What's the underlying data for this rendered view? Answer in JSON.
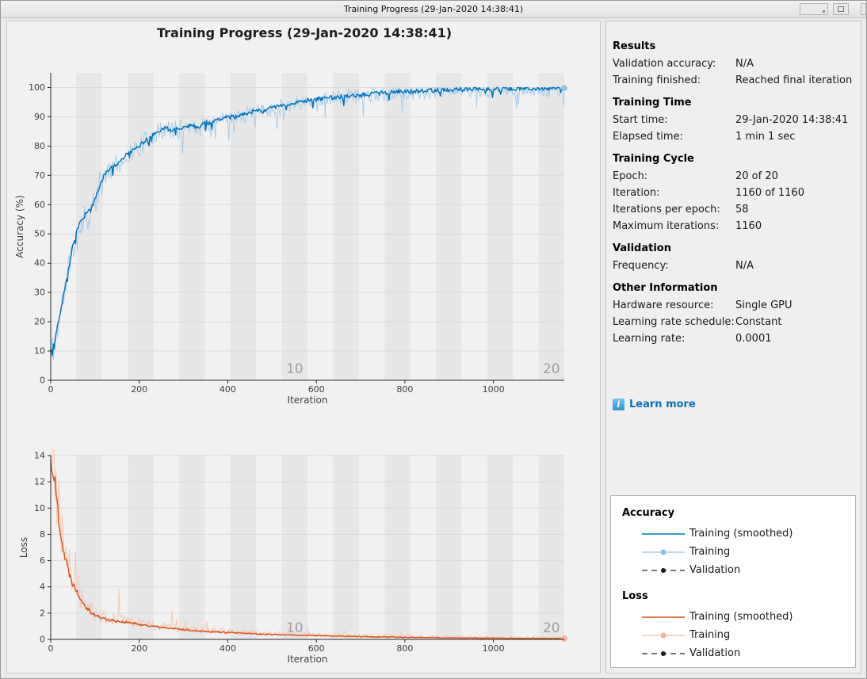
{
  "window": {
    "title": "Training Progress (29-Jan-2020 14:38:41)"
  },
  "figure": {
    "title": "Training Progress (29-Jan-2020 14:38:41)"
  },
  "colors": {
    "accent_blue": "#0072BD",
    "accent_orange": "#D95319",
    "raw_blue": "#A5CCE9",
    "raw_orange": "#F5C6B0",
    "marker_blue": "#92C5E8",
    "marker_orange": "#F2B39B",
    "validation_line": "#262626",
    "band": "#E7E7E7",
    "grid": "#DBDBDB",
    "axis": "#262626",
    "tick_text": "#404040",
    "epoch_label": "#A0A0A0",
    "link": "#0B72B5"
  },
  "info_panel": {
    "sections": [
      {
        "header": "Results",
        "rows": [
          {
            "label": "Validation accuracy:",
            "value": "N/A"
          },
          {
            "label": "Training finished:",
            "value": "Reached final iteration"
          }
        ]
      },
      {
        "header": "Training Time",
        "rows": [
          {
            "label": "Start time:",
            "value": "29-Jan-2020 14:38:41"
          },
          {
            "label": "Elapsed time:",
            "value": "1 min 1 sec"
          }
        ]
      },
      {
        "header": "Training Cycle",
        "rows": [
          {
            "label": "Epoch:",
            "value": "20 of 20"
          },
          {
            "label": "Iteration:",
            "value": "1160 of 1160"
          },
          {
            "label": "Iterations per epoch:",
            "value": "58"
          },
          {
            "label": "Maximum iterations:",
            "value": "1160"
          }
        ]
      },
      {
        "header": "Validation",
        "rows": [
          {
            "label": "Frequency:",
            "value": "N/A"
          }
        ]
      },
      {
        "header": "Other Information",
        "rows": [
          {
            "label": "Hardware resource:",
            "value": "Single GPU"
          },
          {
            "label": "Learning rate schedule:",
            "value": "Constant"
          },
          {
            "label": "Learning rate:",
            "value": "0.0001"
          }
        ]
      }
    ],
    "learn_more": "Learn more"
  },
  "legend": {
    "groups": [
      {
        "title": "Accuracy",
        "entries": [
          {
            "label": "Training (smoothed)",
            "style": "solid",
            "color": "#0072BD"
          },
          {
            "label": "Training",
            "style": "marker",
            "color": "#A5CCE9",
            "marker": "#8FC1E4"
          },
          {
            "label": "Validation",
            "style": "dashed-marker",
            "color": "#262626",
            "marker": "#1A1A1A"
          }
        ]
      },
      {
        "title": "Loss",
        "entries": [
          {
            "label": "Training (smoothed)",
            "style": "solid",
            "color": "#D95319"
          },
          {
            "label": "Training",
            "style": "marker",
            "color": "#F5C6B0",
            "marker": "#EFB69C"
          },
          {
            "label": "Validation",
            "style": "dashed-marker",
            "color": "#262626",
            "marker": "#1A1A1A"
          }
        ]
      }
    ]
  },
  "chart_data": [
    {
      "id": "accuracy",
      "type": "line",
      "xlabel": "Iteration",
      "ylabel": "Accuracy (%)",
      "xlim": [
        0,
        1160
      ],
      "ylim": [
        0,
        105
      ],
      "xticks": [
        0,
        200,
        400,
        600,
        800,
        1000
      ],
      "yticks": [
        0,
        10,
        20,
        30,
        40,
        50,
        60,
        70,
        80,
        90,
        100
      ],
      "grid": "horizontal",
      "epochs": {
        "total": 20,
        "iterations_per_epoch": 58,
        "shaded": "even",
        "labels": [
          {
            "text": "10",
            "epoch": 10
          },
          {
            "text": "20",
            "epoch": 20
          }
        ]
      },
      "series": [
        {
          "name": "Training (smoothed)",
          "color": "#0072BD",
          "points": [
            [
              0,
              9.5
            ],
            [
              10,
              14
            ],
            [
              20,
              22
            ],
            [
              30,
              30
            ],
            [
              40,
              38
            ],
            [
              50,
              46
            ],
            [
              60,
              52
            ],
            [
              70,
              55
            ],
            [
              80,
              57
            ],
            [
              90,
              58
            ],
            [
              100,
              62
            ],
            [
              110,
              66
            ],
            [
              120,
              70
            ],
            [
              130,
              72
            ],
            [
              140,
              73
            ],
            [
              150,
              74
            ],
            [
              160,
              75
            ],
            [
              170,
              77
            ],
            [
              180,
              78
            ],
            [
              190,
              79
            ],
            [
              200,
              80
            ],
            [
              215,
              82
            ],
            [
              230,
              84
            ],
            [
              245,
              85
            ],
            [
              260,
              86
            ],
            [
              275,
              85.5
            ],
            [
              290,
              86
            ],
            [
              305,
              87
            ],
            [
              320,
              87
            ],
            [
              335,
              86.5
            ],
            [
              350,
              88
            ],
            [
              365,
              88
            ],
            [
              380,
              89
            ],
            [
              400,
              90
            ],
            [
              420,
              90
            ],
            [
              440,
              91
            ],
            [
              460,
              92
            ],
            [
              480,
              92
            ],
            [
              500,
              93
            ],
            [
              520,
              94
            ],
            [
              540,
              94.5
            ],
            [
              560,
              95
            ],
            [
              580,
              95.5
            ],
            [
              600,
              96
            ],
            [
              630,
              96.5
            ],
            [
              660,
              97
            ],
            [
              700,
              97.5
            ],
            [
              740,
              98
            ],
            [
              780,
              98.5
            ],
            [
              820,
              98.7
            ],
            [
              860,
              99
            ],
            [
              900,
              99.2
            ],
            [
              950,
              99.4
            ],
            [
              1000,
              99.5
            ],
            [
              1050,
              99.6
            ],
            [
              1100,
              99.7
            ],
            [
              1160,
              99.8
            ]
          ]
        },
        {
          "name": "Training",
          "color": "#A5CCE9",
          "derived_from": "Training (smoothed)",
          "style": "raw-noisy"
        }
      ],
      "end_marker": {
        "x": 1160,
        "y": 99.8,
        "color": "#92C5E8"
      }
    },
    {
      "id": "loss",
      "type": "line",
      "xlabel": "Iteration",
      "ylabel": "Loss",
      "xlim": [
        0,
        1160
      ],
      "ylim": [
        0,
        14
      ],
      "xticks": [
        0,
        200,
        400,
        600,
        800,
        1000
      ],
      "yticks": [
        0,
        2,
        4,
        6,
        8,
        10,
        12,
        14
      ],
      "grid": "horizontal",
      "epochs": {
        "total": 20,
        "iterations_per_epoch": 58,
        "shaded": "even",
        "labels": [
          {
            "text": "10",
            "epoch": 10
          },
          {
            "text": "20",
            "epoch": 20
          }
        ]
      },
      "series": [
        {
          "name": "Training (smoothed)",
          "color": "#D95319",
          "points": [
            [
              0,
              13.5
            ],
            [
              5,
              13
            ],
            [
              10,
              11.8
            ],
            [
              15,
              10.2
            ],
            [
              20,
              8.8
            ],
            [
              25,
              7.6
            ],
            [
              30,
              6.6
            ],
            [
              40,
              5.2
            ],
            [
              50,
              4.3
            ],
            [
              60,
              3.6
            ],
            [
              70,
              3.0
            ],
            [
              80,
              2.5
            ],
            [
              90,
              2.1
            ],
            [
              100,
              1.85
            ],
            [
              110,
              1.7
            ],
            [
              120,
              1.6
            ],
            [
              130,
              1.5
            ],
            [
              140,
              1.45
            ],
            [
              150,
              1.4
            ],
            [
              160,
              1.35
            ],
            [
              170,
              1.3
            ],
            [
              180,
              1.25
            ],
            [
              200,
              1.15
            ],
            [
              220,
              1.05
            ],
            [
              240,
              0.95
            ],
            [
              260,
              0.87
            ],
            [
              280,
              0.8
            ],
            [
              300,
              0.74
            ],
            [
              320,
              0.69
            ],
            [
              340,
              0.64
            ],
            [
              360,
              0.6
            ],
            [
              380,
              0.56
            ],
            [
              400,
              0.52
            ],
            [
              430,
              0.47
            ],
            [
              460,
              0.43
            ],
            [
              490,
              0.39
            ],
            [
              520,
              0.36
            ],
            [
              550,
              0.33
            ],
            [
              580,
              0.3
            ],
            [
              610,
              0.28
            ],
            [
              640,
              0.25
            ],
            [
              670,
              0.23
            ],
            [
              700,
              0.21
            ],
            [
              740,
              0.19
            ],
            [
              780,
              0.17
            ],
            [
              820,
              0.15
            ],
            [
              860,
              0.13
            ],
            [
              900,
              0.12
            ],
            [
              950,
              0.1
            ],
            [
              1000,
              0.09
            ],
            [
              1050,
              0.08
            ],
            [
              1100,
              0.07
            ],
            [
              1160,
              0.06
            ]
          ]
        },
        {
          "name": "Training",
          "color": "#F5C6B0",
          "derived_from": "Training (smoothed)",
          "style": "raw-noisy"
        }
      ],
      "end_marker": {
        "x": 1160,
        "y": 0.06,
        "color": "#F2B39B"
      }
    }
  ]
}
